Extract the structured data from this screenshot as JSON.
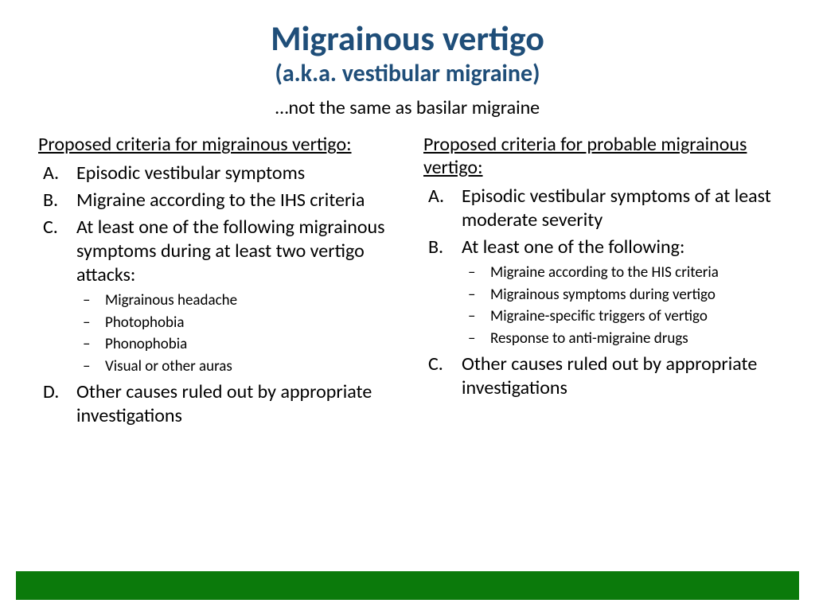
{
  "colors": {
    "title": "#1f4e79",
    "body_text": "#000000",
    "footer_bar": "#0b7a0b",
    "background": "#ffffff"
  },
  "typography": {
    "title_fontsize": 44,
    "subtitle_fontsize": 30,
    "note_fontsize": 24,
    "heading_fontsize": 24,
    "list_fontsize": 24,
    "sublist_fontsize": 19,
    "title_weight": "bold",
    "font_family": "Calibri"
  },
  "header": {
    "title": "Migrainous vertigo",
    "subtitle": "(a.k.a. vestibular migraine)",
    "note": "…not the same as basilar migraine"
  },
  "left": {
    "heading": "Proposed criteria for migrainous vertigo:",
    "items": [
      {
        "letter": "A.",
        "text": "Episodic vestibular symptoms"
      },
      {
        "letter": "B.",
        "text": "Migraine according to the IHS criteria"
      },
      {
        "letter": "C.",
        "text": "At least one of the following migrainous symptoms during at least two vertigo attacks:",
        "sub": [
          "Migrainous headache",
          "Photophobia",
          "Phonophobia",
          "Visual or other auras"
        ]
      },
      {
        "letter": "D.",
        "text": "Other causes ruled out by appropriate investigations"
      }
    ]
  },
  "right": {
    "heading": "Proposed criteria for probable migrainous vertigo:",
    "items": [
      {
        "letter": "A.",
        "text": "Episodic vestibular symptoms of at least moderate severity"
      },
      {
        "letter": "B.",
        "text": "At least one of the following:",
        "sub": [
          "Migraine according to the HIS criteria",
          "Migrainous symptoms during vertigo",
          "Migraine-specific triggers of vertigo",
          "Response to anti-migraine drugs"
        ]
      },
      {
        "letter": "C.",
        "text": "Other causes ruled out by appropriate investigations"
      }
    ]
  }
}
